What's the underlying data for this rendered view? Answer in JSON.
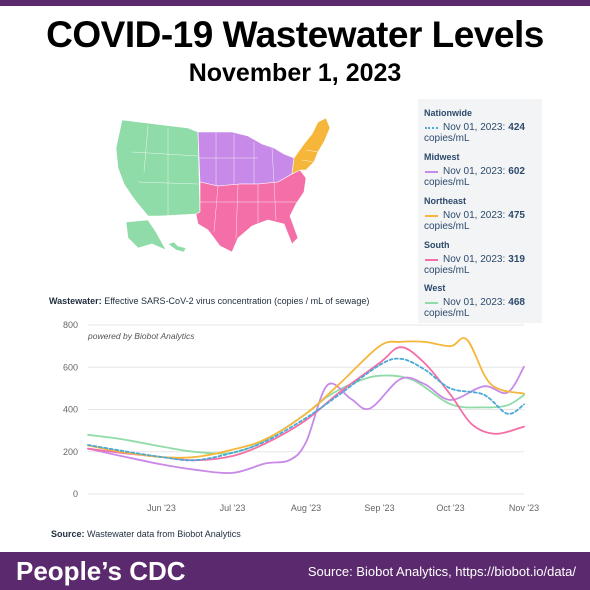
{
  "header": {
    "title": "COVID-19 Wastewater Levels",
    "date": "November 1, 2023"
  },
  "colors": {
    "nationwide": "#4aa9d8",
    "midwest": "#c88ae8",
    "northeast": "#f5b63a",
    "south": "#f46fa8",
    "west": "#8fdca8",
    "brand": "#5b2a6e"
  },
  "map_legend": {
    "items": [
      {
        "region": "Nationwide",
        "label": "Nov 01, 2023:",
        "value": "424",
        "unit": "copies/mL",
        "style": "dotted"
      },
      {
        "region": "Midwest",
        "label": "Nov 01, 2023:",
        "value": "602",
        "unit": "copies/mL",
        "style": "solid"
      },
      {
        "region": "Northeast",
        "label": "Nov 01, 2023:",
        "value": "475",
        "unit": "copies/mL",
        "style": "solid"
      },
      {
        "region": "South",
        "label": "Nov 01, 2023:",
        "value": "319",
        "unit": "copies/mL",
        "style": "solid"
      },
      {
        "region": "West",
        "label": "Nov 01, 2023:",
        "value": "468",
        "unit": "copies/mL",
        "style": "solid"
      }
    ]
  },
  "chart_label": {
    "bold": "Wastewater:",
    "text": "Effective SARS-CoV-2 virus concentration (copies / mL of sewage)"
  },
  "chart_data": {
    "type": "line",
    "watermark": "powered by Biobot Analytics",
    "x_ticks": [
      "Jun '23",
      "Jul '23",
      "Aug '23",
      "Sep '23",
      "Oct '23",
      "Nov '23"
    ],
    "y_ticks": [
      "0",
      "200",
      "400",
      "600",
      "800"
    ],
    "ylim": [
      0,
      800
    ],
    "x_range": [
      "2023-05-01",
      "2023-11-01"
    ],
    "x_tick_dates": [
      "2023-06-01",
      "2023-07-01",
      "2023-08-01",
      "2023-09-01",
      "2023-10-01",
      "2023-11-01"
    ],
    "grid": true,
    "series": [
      {
        "name": "West",
        "color": "#8fdca8",
        "dash": false,
        "x": [
          "2023-05-01",
          "2023-05-15",
          "2023-06-01",
          "2023-06-15",
          "2023-07-01",
          "2023-07-15",
          "2023-08-01",
          "2023-08-10",
          "2023-08-20",
          "2023-09-01",
          "2023-09-15",
          "2023-10-01",
          "2023-10-15",
          "2023-10-25",
          "2023-11-01"
        ],
        "y": [
          280,
          260,
          225,
          200,
          195,
          255,
          380,
          460,
          520,
          560,
          540,
          425,
          410,
          420,
          468
        ]
      },
      {
        "name": "Midwest",
        "color": "#c88ae8",
        "dash": false,
        "x": [
          "2023-05-01",
          "2023-05-15",
          "2023-06-01",
          "2023-06-15",
          "2023-07-01",
          "2023-07-15",
          "2023-07-25",
          "2023-08-01",
          "2023-08-10",
          "2023-08-20",
          "2023-08-28",
          "2023-09-10",
          "2023-09-20",
          "2023-10-01",
          "2023-10-15",
          "2023-10-25",
          "2023-11-01"
        ],
        "y": [
          215,
          180,
          140,
          115,
          100,
          145,
          160,
          245,
          515,
          450,
          405,
          545,
          520,
          445,
          510,
          480,
          602
        ]
      },
      {
        "name": "South",
        "color": "#f46fa8",
        "dash": false,
        "x": [
          "2023-05-01",
          "2023-05-15",
          "2023-06-01",
          "2023-06-15",
          "2023-07-01",
          "2023-07-15",
          "2023-08-01",
          "2023-08-15",
          "2023-09-01",
          "2023-09-10",
          "2023-09-20",
          "2023-10-01",
          "2023-10-10",
          "2023-10-20",
          "2023-11-01"
        ],
        "y": [
          215,
          195,
          175,
          160,
          180,
          240,
          350,
          480,
          620,
          695,
          620,
          470,
          330,
          285,
          319
        ]
      },
      {
        "name": "Northeast",
        "color": "#f5b63a",
        "dash": false,
        "x": [
          "2023-05-01",
          "2023-05-15",
          "2023-06-01",
          "2023-06-15",
          "2023-07-01",
          "2023-07-15",
          "2023-08-01",
          "2023-08-15",
          "2023-09-01",
          "2023-09-10",
          "2023-09-20",
          "2023-10-01",
          "2023-10-08",
          "2023-10-18",
          "2023-11-01"
        ],
        "y": [
          230,
          200,
          175,
          175,
          210,
          260,
          380,
          520,
          700,
          720,
          720,
          700,
          730,
          520,
          475
        ]
      },
      {
        "name": "Nationwide",
        "color": "#4aa9d8",
        "dash": true,
        "x": [
          "2023-05-01",
          "2023-05-15",
          "2023-06-01",
          "2023-06-15",
          "2023-07-01",
          "2023-07-15",
          "2023-08-01",
          "2023-08-15",
          "2023-09-01",
          "2023-09-10",
          "2023-09-20",
          "2023-10-01",
          "2023-10-15",
          "2023-10-25",
          "2023-11-01"
        ],
        "y": [
          232,
          205,
          175,
          160,
          195,
          250,
          360,
          470,
          610,
          640,
          590,
          500,
          470,
          380,
          424
        ]
      }
    ]
  },
  "source_note": {
    "bold": "Source:",
    "text": "Wastewater data from Biobot Analytics"
  },
  "footer": {
    "brand": "People’s CDC",
    "source": "Source: Biobot Analytics, https://biobot.io/data/"
  }
}
